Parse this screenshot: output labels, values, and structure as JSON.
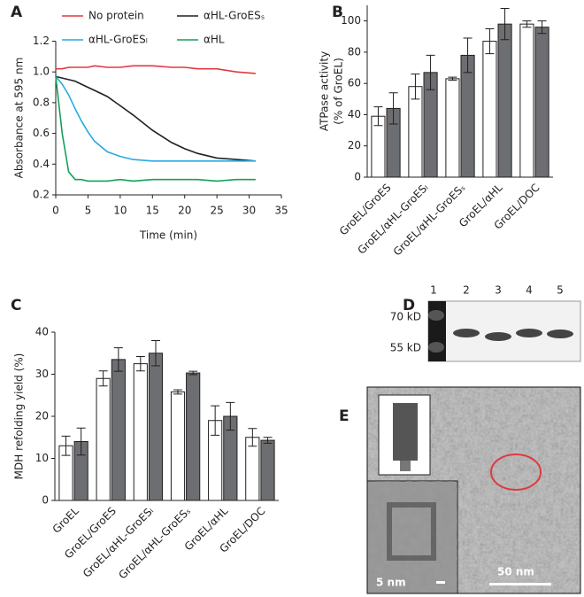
{
  "chart_data": [
    {
      "type": "line",
      "xlabel": "Time (min)",
      "ylabel": "Absorbance at 595 nm",
      "x": [
        0,
        1,
        2,
        3,
        4,
        5,
        6,
        8,
        10,
        12,
        15,
        18,
        20,
        22,
        25,
        28,
        31
      ],
      "xlim": [
        0,
        35
      ],
      "xticks": [
        0,
        5,
        10,
        15,
        20,
        25,
        30,
        35
      ],
      "ylim": [
        0.2,
        1.2
      ],
      "yticks": [
        0.2,
        0.4,
        0.6,
        0.8,
        {
          "value": 1,
          "label": "1.0"
        },
        1.2
      ],
      "series": [
        {
          "name": "No protein",
          "color": "#e0393e",
          "values": [
            1.02,
            1.02,
            1.03,
            1.03,
            1.03,
            1.03,
            1.04,
            1.03,
            1.03,
            1.04,
            1.04,
            1.03,
            1.03,
            1.02,
            1.02,
            1.0,
            0.99
          ]
        },
        {
          "name": "αHL-GroESₛ",
          "color": "#231f20",
          "values": [
            0.97,
            0.96,
            0.95,
            0.94,
            0.92,
            0.9,
            0.88,
            0.84,
            0.78,
            0.72,
            0.62,
            0.54,
            0.5,
            0.47,
            0.44,
            0.43,
            0.42
          ]
        },
        {
          "name": "αHL-GroESₗ",
          "color": "#27aae1",
          "values": [
            0.97,
            0.92,
            0.85,
            0.76,
            0.68,
            0.61,
            0.55,
            0.48,
            0.45,
            0.43,
            0.42,
            0.42,
            0.42,
            0.42,
            0.42,
            0.42,
            0.42
          ]
        },
        {
          "name": "αHL",
          "color": "#14a05a",
          "values": [
            0.97,
            0.6,
            0.35,
            0.3,
            0.3,
            0.29,
            0.29,
            0.29,
            0.3,
            0.29,
            0.3,
            0.3,
            0.3,
            0.3,
            0.29,
            0.3,
            0.3
          ]
        }
      ]
    },
    {
      "type": "bar",
      "ylabel": [
        "ATPase activity",
        "(% of GroEL)"
      ],
      "categories": [
        "GroEL/GroES",
        "GroEL/αHL-GroESₗ",
        "GroEL/αHL-GroESₛ",
        "GroEL/αHL",
        "GroEL/DOC"
      ],
      "ylim": [
        0,
        110
      ],
      "yticks": [
        0,
        20,
        40,
        60,
        80,
        100
      ],
      "series": [
        {
          "color": "#ffffff",
          "values": [
            39,
            58,
            63,
            87,
            98
          ],
          "errors": [
            6,
            8,
            1,
            8,
            2
          ]
        },
        {
          "color": "#6d6e71",
          "values": [
            44,
            67,
            78,
            98,
            96
          ],
          "errors": [
            10,
            11,
            11,
            10,
            4
          ]
        }
      ]
    },
    {
      "type": "bar",
      "ylabel": "MDH refolding yield (%)",
      "categories": [
        "GroEL",
        "GroEL/GroES",
        "GroEL/αHL-GroESₗ",
        "GroEL/αHL-GroESₛ",
        "GroEL/αHL",
        "GroEL/DOC"
      ],
      "ylim": [
        0,
        40
      ],
      "yticks": [
        0,
        10,
        20,
        30,
        40
      ],
      "series": [
        {
          "color": "#ffffff",
          "values": [
            13,
            29,
            32.5,
            25.8,
            19,
            15
          ],
          "errors": [
            2.3,
            1.8,
            1.7,
            0.5,
            3.5,
            2.1
          ]
        },
        {
          "color": "#6d6e71",
          "values": [
            14,
            33.5,
            35,
            30.3,
            20,
            14.3
          ],
          "errors": [
            3.2,
            2.8,
            3,
            0.4,
            3.3,
            0.7
          ]
        }
      ]
    }
  ],
  "panel_labels": [
    "A",
    "B",
    "C",
    "D",
    "E"
  ],
  "gel": {
    "lanes": [
      "1",
      "2",
      "3",
      "4",
      "5"
    ],
    "markers": [
      "70 kD",
      "55 kD"
    ]
  },
  "micrograph": {
    "scale_bars": [
      "5 nm",
      "50 nm"
    ]
  }
}
